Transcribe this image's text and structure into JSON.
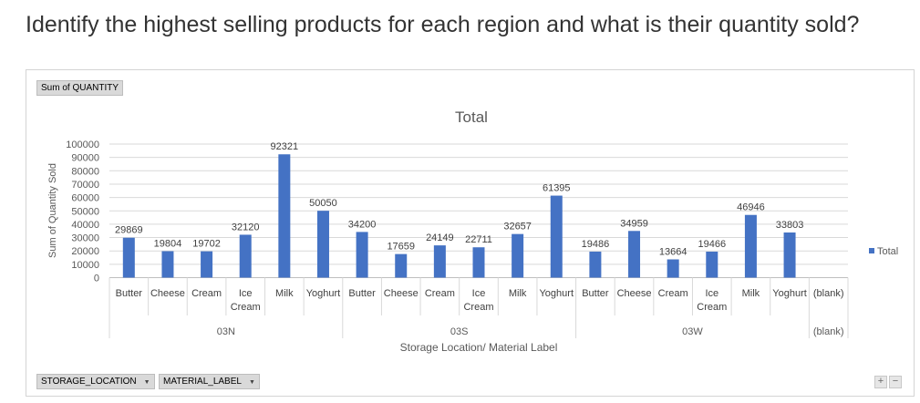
{
  "question": "Identify the highest selling products for each region and what is their quantity sold?",
  "pivot": {
    "value_field": "Sum of QUANTITY",
    "row_fields": [
      {
        "label": "STORAGE_LOCATION"
      },
      {
        "label": "MATERIAL_LABEL"
      }
    ],
    "zoom_in": "+",
    "zoom_out": "−"
  },
  "chart_data": {
    "type": "bar",
    "title": "Total",
    "xlabel": "Storage Location/ Material Label",
    "ylabel": "Sum of Quantity Sold",
    "ylim": [
      0,
      100000
    ],
    "yticks": [
      "0",
      "10000",
      "20000",
      "30000",
      "40000",
      "50000",
      "60000",
      "70000",
      "80000",
      "90000",
      "100000"
    ],
    "grid": true,
    "legend_position": "right",
    "bar_color": "#4472c4",
    "groups": [
      {
        "name": "03N",
        "categories": [
          {
            "label": [
              "Butter"
            ],
            "value": 29869
          },
          {
            "label": [
              "Cheese"
            ],
            "value": 19804
          },
          {
            "label": [
              "Cream"
            ],
            "value": 19702
          },
          {
            "label": [
              "Ice",
              "Cream"
            ],
            "value": 32120
          },
          {
            "label": [
              "Milk"
            ],
            "value": 92321
          },
          {
            "label": [
              "Yoghurt"
            ],
            "value": 50050
          }
        ]
      },
      {
        "name": "03S",
        "categories": [
          {
            "label": [
              "Butter"
            ],
            "value": 34200
          },
          {
            "label": [
              "Cheese"
            ],
            "value": 17659
          },
          {
            "label": [
              "Cream"
            ],
            "value": 24149
          },
          {
            "label": [
              "Ice",
              "Cream"
            ],
            "value": 22711
          },
          {
            "label": [
              "Milk"
            ],
            "value": 32657
          },
          {
            "label": [
              "Yoghurt"
            ],
            "value": 61395
          }
        ]
      },
      {
        "name": "03W",
        "categories": [
          {
            "label": [
              "Butter"
            ],
            "value": 19486
          },
          {
            "label": [
              "Cheese"
            ],
            "value": 34959
          },
          {
            "label": [
              "Cream"
            ],
            "value": 13664
          },
          {
            "label": [
              "Ice",
              "Cream"
            ],
            "value": 19466
          },
          {
            "label": [
              "Milk"
            ],
            "value": 46946
          },
          {
            "label": [
              "Yoghurt"
            ],
            "value": 33803
          }
        ]
      },
      {
        "name": "(blank)",
        "categories": [
          {
            "label": [
              "(blank)"
            ],
            "value": null
          }
        ]
      }
    ],
    "series": [
      {
        "name": "Total"
      }
    ]
  }
}
